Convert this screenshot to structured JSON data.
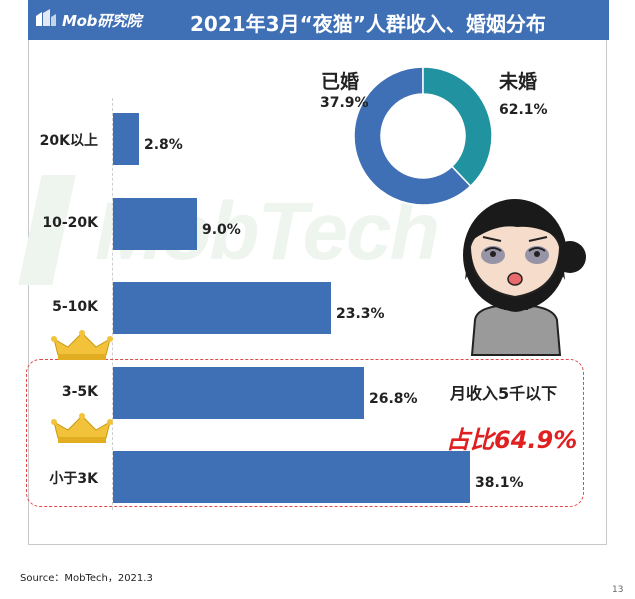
{
  "header": {
    "logo_text": "Mob研究院",
    "title": "2021年3月“夜猫”人群收入、婚姻分布"
  },
  "watermark": "MobTech",
  "colors": {
    "bar": "#3f6fb5",
    "donut_married": "#2192a0",
    "donut_unmarried": "#3f6fb5",
    "emphasis": "#e02020"
  },
  "annotation": {
    "label": "月收入5千以下",
    "share": "占比64.9%"
  },
  "footer": {
    "source": "Source：MobTech，2021.3",
    "page": "13"
  },
  "icons": {
    "income_rank_marker": "crown-icon",
    "illustration": "tired-girl-illustration"
  },
  "chart_data": [
    {
      "type": "bar",
      "orientation": "horizontal",
      "categories": [
        "20K以上",
        "10-20K",
        "5-10K",
        "3-5K",
        "小于3K"
      ],
      "values": [
        2.8,
        9.0,
        23.3,
        26.8,
        38.1
      ],
      "labels": [
        "2.8%",
        "9.0%",
        "23.3%",
        "26.8%",
        "38.1%"
      ],
      "unit": "%",
      "xlim": [
        0,
        38.1
      ],
      "grid": false
    },
    {
      "type": "pie",
      "style": "donut",
      "categories": [
        "已婚",
        "未婚"
      ],
      "values": [
        37.9,
        62.1
      ],
      "labels": [
        "37.9%",
        "62.1%"
      ]
    }
  ]
}
